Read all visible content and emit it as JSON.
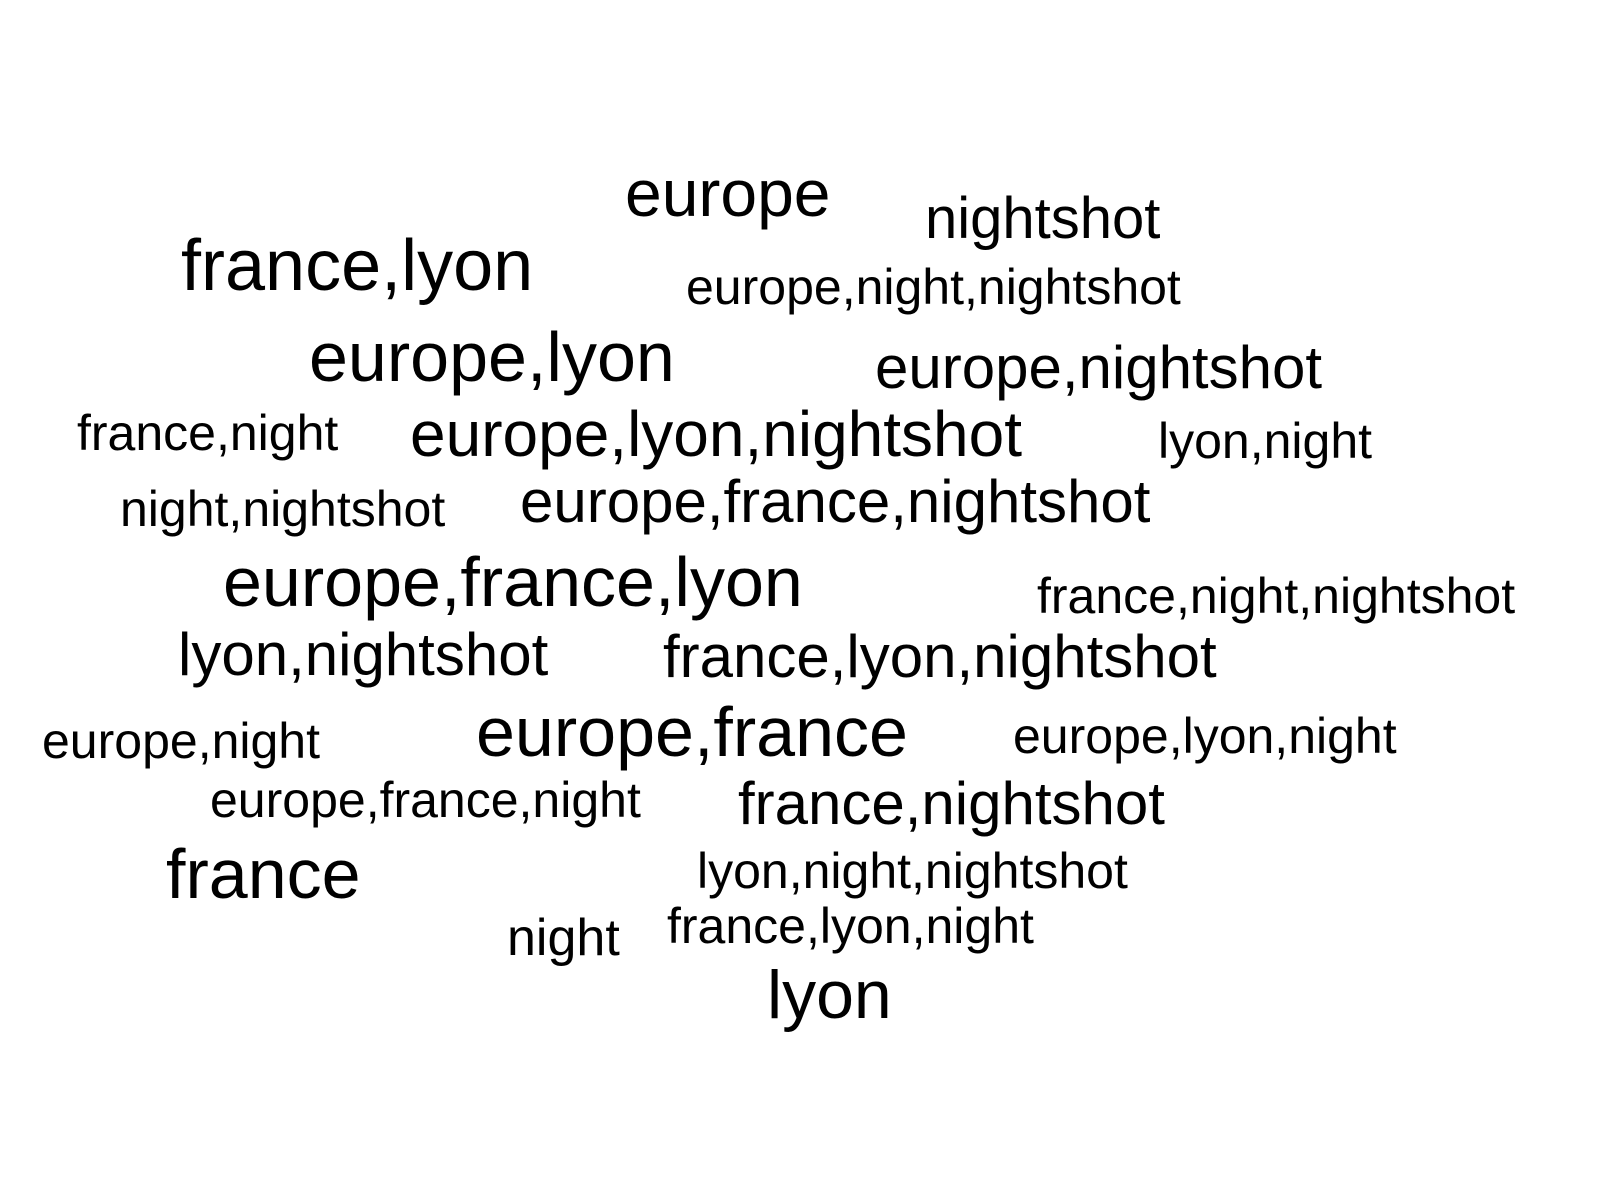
{
  "words": [
    "europe",
    "nightshot",
    "france,lyon",
    "europe,night,nightshot",
    "europe,lyon",
    "europe,nightshot",
    "france,night",
    "europe,lyon,nightshot",
    "lyon,night",
    "night,nightshot",
    "europe,france,nightshot",
    "europe,france,lyon",
    "france,night,nightshot",
    "lyon,nightshot",
    "france,lyon,nightshot",
    "europe,night",
    "europe,france",
    "europe,lyon,night",
    "europe,france,night",
    "france,nightshot",
    "france",
    "lyon,night,nightshot",
    "night",
    "france,lyon,night",
    "lyon"
  ],
  "colors": {
    "background": "#ffffff",
    "text": "#000000"
  }
}
